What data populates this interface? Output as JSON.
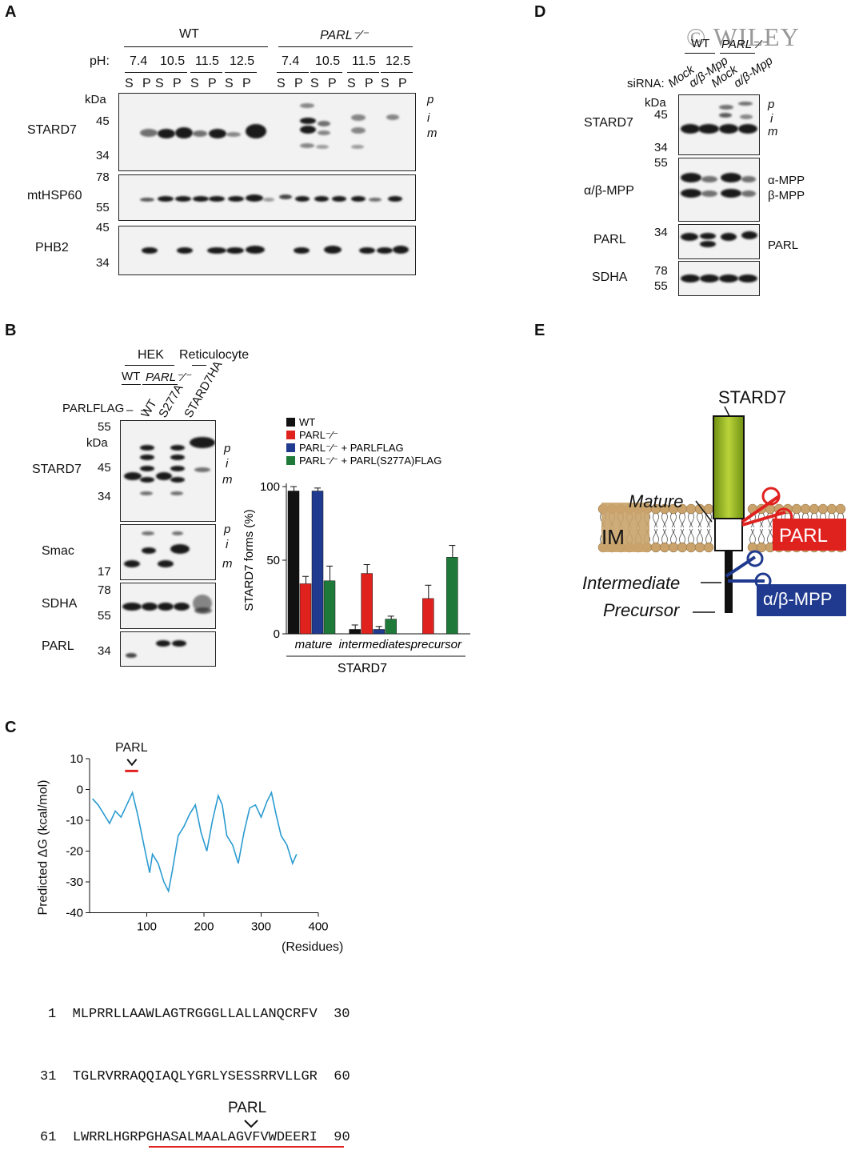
{
  "watermark": "© WILEY",
  "panels": {
    "a": "A",
    "b": "B",
    "c": "C",
    "d": "D",
    "e": "E"
  },
  "panelA": {
    "groups": [
      "WT",
      "PARL⁻⁄⁻"
    ],
    "ph_label": "pH:",
    "ph_values": [
      "7.4",
      "10.5",
      "11.5",
      "12.5",
      "7.4",
      "10.5",
      "11.5",
      "12.5"
    ],
    "fractions": [
      "S",
      "P"
    ],
    "kda": "kDa",
    "blots": [
      {
        "name": "STARD7",
        "markers": [
          "45",
          "34"
        ]
      },
      {
        "name": "mtHSP60",
        "markers": [
          "78",
          "55"
        ]
      },
      {
        "name": "PHB2",
        "markers": [
          "45",
          "34"
        ]
      }
    ],
    "forms": [
      "p",
      "i",
      "m"
    ]
  },
  "panelB": {
    "hek": "HEK",
    "retic": "Reticulocyte",
    "wt": "WT",
    "parl_ko": "PARL⁻⁄⁻",
    "parl_flag": "PARLFLAG",
    "lanes": [
      "–",
      "–",
      "WT",
      "S277A",
      "STARD7HA"
    ],
    "kda": "kDa",
    "blots": [
      {
        "name": "STARD7",
        "markers": [
          "55",
          "45",
          "34"
        ]
      },
      {
        "name": "Smac",
        "markers": [
          "17"
        ]
      },
      {
        "name": "SDHA",
        "markers": [
          "78",
          "55"
        ]
      },
      {
        "name": "PARL",
        "markers": [
          "34"
        ]
      }
    ],
    "forms": [
      "p",
      "i",
      "m"
    ]
  },
  "chart_data": {
    "type": "bar",
    "title": "",
    "ylabel": "STARD7 forms (%)",
    "xlabel": "STARD7",
    "ylim": [
      0,
      100
    ],
    "yticks": [
      0,
      50,
      100
    ],
    "categories": [
      "mature",
      "intermediates",
      "precursor"
    ],
    "series": [
      {
        "name": "WT",
        "color": "#111111",
        "values": [
          97,
          3,
          0
        ],
        "err": [
          3,
          3,
          0
        ]
      },
      {
        "name": "PARL⁻⁄⁻",
        "color": "#e0221f",
        "values": [
          34,
          41,
          24
        ],
        "err": [
          5,
          6,
          9
        ]
      },
      {
        "name": "PARL⁻⁄⁻ + PARLFLAG",
        "color": "#1f3a8f",
        "values": [
          97,
          3,
          0
        ],
        "err": [
          2,
          2,
          0
        ]
      },
      {
        "name": "PARL⁻⁄⁻ + PARL(S277A)FLAG",
        "color": "#1f7a3a",
        "values": [
          36,
          10,
          52
        ],
        "err": [
          10,
          2,
          8
        ]
      }
    ],
    "legend": "top-right"
  },
  "panelC": {
    "parl_label": "PARL",
    "ylabel": "Predicted ΔG (kcal/mol)",
    "xlabel": "(Residues)",
    "yticks": [
      "10",
      "0",
      "-10",
      "-20",
      "-30",
      "-40"
    ],
    "xticks": [
      "100",
      "200",
      "300",
      "400"
    ],
    "sequence": [
      {
        "start": "1",
        "seq": "MLPRRLLAAWLAGTRGGGLLALLANQCRFV",
        "end": "30"
      },
      {
        "start": "31",
        "seq": "TGLRVRRAQQIAQLYGRLYSESSRRVLLGR",
        "end": "60"
      },
      {
        "start": "61",
        "seq": "LWRRLHGRPGHASALMAALAGVFVWDEERI",
        "end": "90"
      }
    ],
    "seq_parl": "PARL"
  },
  "panelD": {
    "wt": "WT",
    "parl_ko": "PARL⁻⁄⁻",
    "sirna": "siRNA:",
    "lanes": [
      "Mock",
      "α/β-Mpp",
      "Mock",
      "α/β-Mpp"
    ],
    "kda": "kDa",
    "blots": [
      {
        "name": "STARD7",
        "markers": [
          "45",
          "34"
        ],
        "right": ""
      },
      {
        "name": "α/β-MPP",
        "markers": [
          "55"
        ],
        "right": "α-MPP"
      },
      {
        "name": "PARL",
        "markers": [
          "34"
        ],
        "right": "PARL"
      },
      {
        "name": "SDHA",
        "markers": [
          "78",
          "55"
        ],
        "right": ""
      }
    ],
    "mpp_b": "β-MPP",
    "forms": [
      "p",
      "i",
      "m"
    ]
  },
  "panelE": {
    "stard7": "STARD7",
    "mature": "Mature",
    "im": "IM",
    "parl": "PARL",
    "intermediate": "Intermediate",
    "precursor": "Precursor",
    "mpp": "α/β-MPP"
  }
}
